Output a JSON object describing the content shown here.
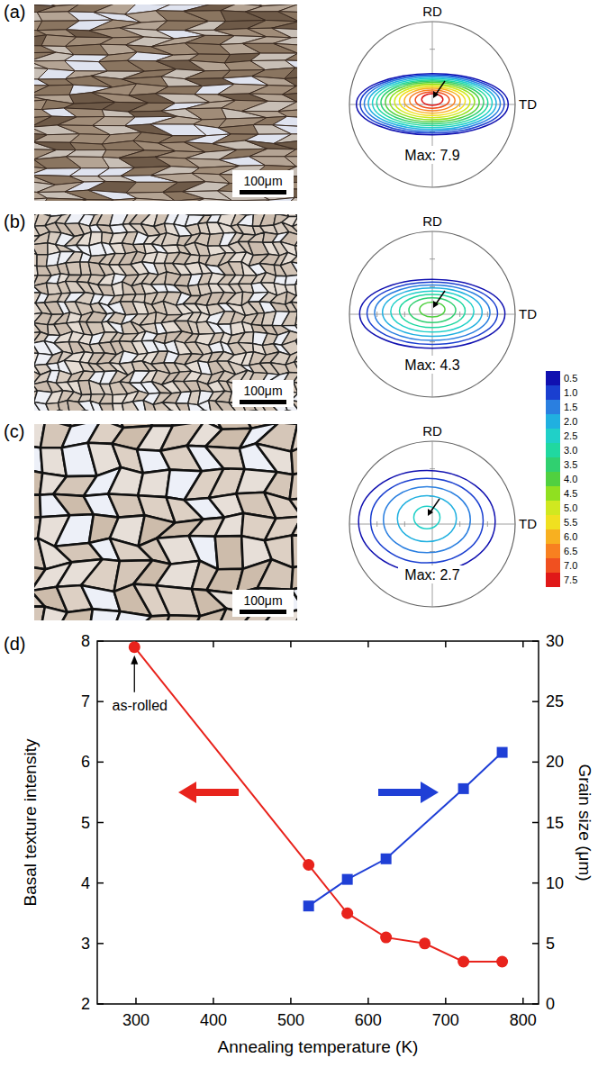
{
  "panels": [
    {
      "label": "(a)",
      "scale_bar": "100μm",
      "pole_figure": {
        "rd": "RD",
        "td": "TD",
        "max": {
          "value": 7.9,
          "label": "Max: 7.9"
        }
      }
    },
    {
      "label": "(b)",
      "scale_bar": "100μm",
      "pole_figure": {
        "rd": "RD",
        "td": "TD",
        "max": {
          "value": 4.3,
          "label": "Max: 4.3"
        }
      }
    },
    {
      "label": "(c)",
      "scale_bar": "100μm",
      "pole_figure": {
        "rd": "RD",
        "td": "TD",
        "max": {
          "value": 2.7,
          "label": "Max: 2.7"
        }
      }
    }
  ],
  "color_bar": {
    "ticks": [
      0.5,
      {
        "value": 1,
        "label": "1.0"
      },
      1.5,
      {
        "value": 2,
        "label": "2.0"
      },
      2.5,
      {
        "value": 3,
        "label": "3.0"
      },
      3.5,
      {
        "value": 4,
        "label": "4.0"
      },
      4.5,
      {
        "value": 5,
        "label": "5.0"
      },
      5.5,
      {
        "value": 6,
        "label": "6.0"
      },
      6.5,
      {
        "value": 7,
        "label": "7.0"
      },
      7.5
    ],
    "colors": [
      "#1010b0",
      "#1a3fd0",
      "#2a7fe0",
      "#20b0e0",
      "#20d0c8",
      "#20d8a0",
      "#30d070",
      "#50d040",
      "#90e020",
      "#d0e820",
      "#f0e020",
      "#f8b020",
      "#f88020",
      "#f05020",
      "#e01818"
    ]
  },
  "chart_data": {
    "type": "line",
    "label": "(d)",
    "xlabel": "Annealing temperature (K)",
    "ylabel": "Basal texture intensity",
    "y2label": "Grain size (μm)",
    "xlim": [
      250,
      820
    ],
    "xticks": [
      300,
      400,
      500,
      600,
      700,
      800
    ],
    "ylim": [
      2,
      8
    ],
    "yticks": [
      2,
      3,
      4,
      5,
      6,
      7,
      8
    ],
    "y2lim": [
      0,
      30
    ],
    "y2ticks": [
      0,
      5,
      10,
      15,
      20,
      25,
      30
    ],
    "annotations": [
      {
        "text": "as-rolled",
        "x": 298,
        "y": 7.9
      }
    ],
    "series": [
      {
        "x": [
          298,
          523,
          573,
          623,
          673,
          723,
          773
        ],
        "values": [
          7.9,
          4.3,
          3.5,
          3.1,
          3.0,
          2.7,
          2.7
        ],
        "color": "#e8231c",
        "marker": "circle"
      },
      {
        "x": [
          523,
          573,
          623,
          723,
          773
        ],
        "values": [
          8.1,
          10.3,
          12.0,
          17.8,
          20.8
        ],
        "color": "#1f3fd6",
        "marker": "square",
        "axis": "y2"
      }
    ]
  }
}
